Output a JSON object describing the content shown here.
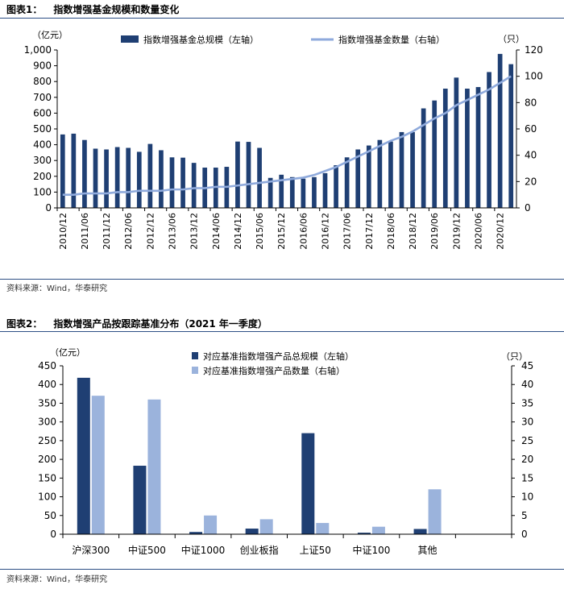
{
  "figures": [
    {
      "label": "图表1：",
      "title": "指数增强基金规模和数量变化",
      "source": "资料来源：Wind，华泰研究"
    },
    {
      "label": "图表2：",
      "title": "指数增强产品按跟踪基准分布（2021 年一季度）",
      "source": "资料来源：Wind，华泰研究"
    }
  ],
  "chart_data": [
    {
      "type": "bar+line",
      "title": "指数增强基金规模和数量变化",
      "left_unit": "（亿元）",
      "right_unit": "（只）",
      "left_ylim": [
        0,
        1000
      ],
      "right_ylim": [
        0,
        120
      ],
      "left_ticks": [
        "0",
        "100",
        "200",
        "300",
        "400",
        "500",
        "600",
        "700",
        "800",
        "900",
        "1,000"
      ],
      "right_ticks": [
        "0",
        "20",
        "40",
        "60",
        "80",
        "100",
        "120"
      ],
      "x_tick_labels": [
        "2010/12",
        "2011/06",
        "2011/12",
        "2012/06",
        "2012/12",
        "2013/06",
        "2013/12",
        "2014/06",
        "2014/12",
        "2015/06",
        "2015/12",
        "2016/06",
        "2016/12",
        "2017/06",
        "2017/12",
        "2018/06",
        "2018/12",
        "2019/06",
        "2019/12",
        "2020/06",
        "2020/12"
      ],
      "series": [
        {
          "name": "指数增强基金总规模（左轴）",
          "type": "bar",
          "axis": "left",
          "color": "#1f3f73",
          "values": [
            465,
            470,
            430,
            375,
            370,
            385,
            380,
            355,
            405,
            365,
            320,
            318,
            285,
            255,
            255,
            260,
            420,
            418,
            380,
            190,
            210,
            195,
            185,
            195,
            220,
            270,
            320,
            370,
            395,
            430,
            420,
            480,
            480,
            630,
            680,
            755,
            825,
            755,
            765,
            860,
            975,
            910
          ]
        },
        {
          "name": "指数增强基金数量（右轴）",
          "type": "line",
          "axis": "right",
          "color": "#8faadc",
          "values": [
            10,
            10,
            11,
            11,
            11,
            12,
            12,
            13,
            13,
            13,
            14,
            14,
            15,
            15,
            16,
            16,
            17,
            18,
            19,
            20,
            21,
            22,
            23,
            25,
            28,
            31,
            35,
            39,
            43,
            47,
            51,
            54,
            58,
            63,
            68,
            72,
            78,
            82,
            86,
            90,
            95,
            100
          ]
        }
      ]
    },
    {
      "type": "bar",
      "title": "指数增强产品按跟踪基准分布（2021 年一季度）",
      "left_unit": "（亿元）",
      "right_unit": "（只）",
      "left_ylim": [
        0,
        450
      ],
      "right_ylim": [
        0,
        45
      ],
      "left_ticks": [
        "0",
        "50",
        "100",
        "150",
        "200",
        "250",
        "300",
        "350",
        "400",
        "450"
      ],
      "right_ticks": [
        "0",
        "5",
        "10",
        "15",
        "20",
        "25",
        "30",
        "35",
        "40",
        "45"
      ],
      "categories": [
        "沪深300",
        "中证500",
        "中证1000",
        "创业板指",
        "上证50",
        "中证100",
        "其他"
      ],
      "series": [
        {
          "name": "对应基准指数增强产品总规模（左轴）",
          "axis": "left",
          "color": "#1f3f73",
          "values": [
            418,
            183,
            6,
            15,
            270,
            4,
            14
          ]
        },
        {
          "name": "对应基准指数增强产品数量（右轴）",
          "axis": "right",
          "color": "#9bb3dc",
          "values": [
            37,
            36,
            5,
            4,
            3,
            2,
            12
          ]
        }
      ]
    }
  ]
}
